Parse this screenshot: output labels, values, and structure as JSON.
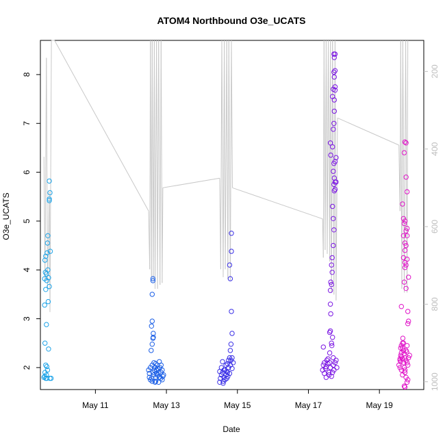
{
  "chart_data": {
    "type": "scatter",
    "title": "ATOM4 Northbound O3e_UCATS",
    "xlabel": "Date",
    "ylabel": "O3e_UCATS",
    "x_ticks": [
      "May 11",
      "May 13",
      "May 15",
      "May 17",
      "May 19"
    ],
    "x_tick_days": [
      11,
      13,
      15,
      17,
      19
    ],
    "xlim": [
      9.45,
      20.25
    ],
    "y_ticks": [
      2,
      3,
      4,
      5,
      6,
      7,
      8
    ],
    "ylim": [
      1.55,
      8.7
    ],
    "y2_ticks": [
      200,
      400,
      600,
      800,
      1000
    ],
    "y2lim": [
      1020,
      120
    ],
    "y2_reversed": true,
    "grid": false,
    "point_style": "open-circle",
    "series": [
      {
        "color": "#1ca3e8",
        "points": [
          [
            9.55,
            1.8
          ],
          [
            9.57,
            1.82
          ],
          [
            9.6,
            1.78
          ],
          [
            9.62,
            1.85
          ],
          [
            9.58,
            1.9
          ],
          [
            9.65,
            1.95
          ],
          [
            9.6,
            2.05
          ],
          [
            9.63,
            2.02
          ],
          [
            9.58,
            2.5
          ],
          [
            9.68,
            2.38
          ],
          [
            9.62,
            2.88
          ],
          [
            9.57,
            3.28
          ],
          [
            9.6,
            3.6
          ],
          [
            9.63,
            3.78
          ],
          [
            9.57,
            3.82
          ],
          [
            9.62,
            3.92
          ],
          [
            9.59,
            3.95
          ],
          [
            9.66,
            4.0
          ],
          [
            9.58,
            4.2
          ],
          [
            9.64,
            4.35
          ],
          [
            9.6,
            4.28
          ],
          [
            9.66,
            4.7
          ],
          [
            9.65,
            4.55
          ],
          [
            9.7,
            5.45
          ],
          [
            9.7,
            5.42
          ],
          [
            9.72,
            5.58
          ],
          [
            9.7,
            5.82
          ],
          [
            9.73,
            4.38
          ],
          [
            9.7,
            3.66
          ],
          [
            9.67,
            3.35
          ],
          [
            9.75,
            1.78
          ],
          [
            9.72,
            1.78
          ],
          [
            9.63,
            1.78
          ],
          [
            9.68,
            3.84
          ]
        ]
      },
      {
        "color": "#1a5ee6",
        "points": [
          [
            12.5,
            1.95
          ],
          [
            12.52,
            1.8
          ],
          [
            12.55,
            1.75
          ],
          [
            12.6,
            1.72
          ],
          [
            12.62,
            1.9
          ],
          [
            12.65,
            1.85
          ],
          [
            12.68,
            1.7
          ],
          [
            12.7,
            1.8
          ],
          [
            12.72,
            1.95
          ],
          [
            12.75,
            1.85
          ],
          [
            12.78,
            1.7
          ],
          [
            12.8,
            1.8
          ],
          [
            12.82,
            2.0
          ],
          [
            12.85,
            1.9
          ],
          [
            12.88,
            1.75
          ],
          [
            12.9,
            1.82
          ],
          [
            12.55,
            2.0
          ],
          [
            12.6,
            2.05
          ],
          [
            12.65,
            2.1
          ],
          [
            12.7,
            2.08
          ],
          [
            12.75,
            1.98
          ],
          [
            12.8,
            2.12
          ],
          [
            12.85,
            2.05
          ],
          [
            12.88,
            1.95
          ],
          [
            12.57,
            2.35
          ],
          [
            12.6,
            2.48
          ],
          [
            12.62,
            2.6
          ],
          [
            12.63,
            2.62
          ],
          [
            12.58,
            2.85
          ],
          [
            12.6,
            2.95
          ],
          [
            12.63,
            2.7
          ],
          [
            12.6,
            3.5
          ],
          [
            12.62,
            3.78
          ],
          [
            12.62,
            3.82
          ],
          [
            12.68,
            2.0
          ],
          [
            12.72,
            1.88
          ],
          [
            12.92,
            1.85
          ],
          [
            12.52,
            1.88
          ],
          [
            12.66,
            1.95
          ],
          [
            12.78,
            1.9
          ],
          [
            12.84,
            1.78
          ],
          [
            12.74,
            2.05
          ],
          [
            12.7,
            1.72
          ],
          [
            12.58,
            1.78
          ]
        ]
      },
      {
        "color": "#3a2fe6",
        "points": [
          [
            14.5,
            1.7
          ],
          [
            14.52,
            1.78
          ],
          [
            14.55,
            1.85
          ],
          [
            14.58,
            1.9
          ],
          [
            14.6,
            1.72
          ],
          [
            14.62,
            1.8
          ],
          [
            14.65,
            1.95
          ],
          [
            14.68,
            1.85
          ],
          [
            14.7,
            1.78
          ],
          [
            14.72,
            1.9
          ],
          [
            14.75,
            2.0
          ],
          [
            14.78,
            1.88
          ],
          [
            14.8,
            2.05
          ],
          [
            14.82,
            2.15
          ],
          [
            14.85,
            2.2
          ],
          [
            14.55,
            2.0
          ],
          [
            14.58,
            2.12
          ],
          [
            14.62,
            1.95
          ],
          [
            14.68,
            2.05
          ],
          [
            14.7,
            1.92
          ],
          [
            14.72,
            2.08
          ],
          [
            14.75,
            2.15
          ],
          [
            14.78,
            2.2
          ],
          [
            14.8,
            2.35
          ],
          [
            14.82,
            2.48
          ],
          [
            14.85,
            2.7
          ],
          [
            14.83,
            3.15
          ],
          [
            14.8,
            3.82
          ],
          [
            14.78,
            4.1
          ],
          [
            14.83,
            4.38
          ],
          [
            14.83,
            4.75
          ],
          [
            14.6,
            1.68
          ],
          [
            14.65,
            1.75
          ],
          [
            14.73,
            1.82
          ],
          [
            14.85,
            1.98
          ],
          [
            14.5,
            1.92
          ],
          [
            14.88,
            2.1
          ]
        ]
      },
      {
        "color": "#7a14e3",
        "points": [
          [
            17.4,
            1.95
          ],
          [
            17.42,
            2.05
          ],
          [
            17.45,
            2.1
          ],
          [
            17.48,
            1.98
          ],
          [
            17.5,
            2.02
          ],
          [
            17.52,
            2.15
          ],
          [
            17.55,
            2.08
          ],
          [
            17.58,
            1.9
          ],
          [
            17.6,
            2.1
          ],
          [
            17.62,
            2.0
          ],
          [
            17.65,
            1.82
          ],
          [
            17.68,
            1.9
          ],
          [
            17.7,
            2.05
          ],
          [
            17.72,
            1.95
          ],
          [
            17.75,
            2.1
          ],
          [
            17.78,
            2.15
          ],
          [
            17.42,
            2.42
          ],
          [
            17.55,
            2.18
          ],
          [
            17.6,
            2.3
          ],
          [
            17.65,
            2.5
          ],
          [
            17.68,
            2.62
          ],
          [
            17.6,
            2.72
          ],
          [
            17.62,
            2.75
          ],
          [
            17.63,
            3.1
          ],
          [
            17.62,
            3.3
          ],
          [
            17.62,
            3.58
          ],
          [
            17.65,
            3.7
          ],
          [
            17.67,
            3.95
          ],
          [
            17.65,
            4.1
          ],
          [
            17.67,
            4.25
          ],
          [
            17.63,
            3.75
          ],
          [
            17.7,
            4.5
          ],
          [
            17.72,
            4.82
          ],
          [
            17.7,
            5.05
          ],
          [
            17.68,
            5.3
          ],
          [
            17.73,
            5.62
          ],
          [
            17.75,
            5.65
          ],
          [
            17.72,
            5.75
          ],
          [
            17.75,
            5.8
          ],
          [
            17.73,
            5.88
          ],
          [
            17.78,
            5.8
          ],
          [
            17.7,
            6.02
          ],
          [
            17.72,
            6.18
          ],
          [
            17.75,
            6.22
          ],
          [
            17.78,
            6.3
          ],
          [
            17.63,
            6.35
          ],
          [
            17.62,
            6.6
          ],
          [
            17.68,
            6.52
          ],
          [
            17.7,
            6.88
          ],
          [
            17.72,
            7.0
          ],
          [
            17.73,
            7.25
          ],
          [
            17.68,
            7.55
          ],
          [
            17.73,
            7.48
          ],
          [
            17.75,
            7.68
          ],
          [
            17.75,
            7.75
          ],
          [
            17.7,
            7.7
          ],
          [
            17.73,
            7.95
          ],
          [
            17.72,
            8.05
          ],
          [
            17.75,
            8.08
          ],
          [
            17.72,
            8.42
          ],
          [
            17.75,
            8.42
          ],
          [
            17.73,
            8.35
          ],
          [
            17.5,
            1.8
          ],
          [
            17.58,
            1.85
          ],
          [
            17.45,
            1.88
          ],
          [
            17.8,
            2.0
          ],
          [
            17.7,
            2.2
          ],
          [
            17.66,
            2.45
          ]
        ]
      },
      {
        "color": "#e012c8",
        "points": [
          [
            19.55,
            2.05
          ],
          [
            19.58,
            2.15
          ],
          [
            19.6,
            2.25
          ],
          [
            19.62,
            2.3
          ],
          [
            19.65,
            2.18
          ],
          [
            19.68,
            2.1
          ],
          [
            19.7,
            2.0
          ],
          [
            19.72,
            1.9
          ],
          [
            19.75,
            1.8
          ],
          [
            19.78,
            1.7
          ],
          [
            19.8,
            1.75
          ],
          [
            19.82,
            2.2
          ],
          [
            19.85,
            2.25
          ],
          [
            19.6,
            2.4
          ],
          [
            19.62,
            2.45
          ],
          [
            19.65,
            2.5
          ],
          [
            19.68,
            2.35
          ],
          [
            19.7,
            2.28
          ],
          [
            19.72,
            2.2
          ],
          [
            19.75,
            2.15
          ],
          [
            19.78,
            2.1
          ],
          [
            19.8,
            2.05
          ],
          [
            19.7,
            1.62
          ],
          [
            19.72,
            1.6
          ],
          [
            19.65,
            1.85
          ],
          [
            19.62,
            1.95
          ],
          [
            19.58,
            2.0
          ],
          [
            19.6,
            2.12
          ],
          [
            19.62,
            2.22
          ],
          [
            19.65,
            2.4
          ],
          [
            19.68,
            2.5
          ],
          [
            19.72,
            1.95
          ],
          [
            19.75,
            2.35
          ],
          [
            19.78,
            2.45
          ],
          [
            19.8,
            2.9
          ],
          [
            19.82,
            2.95
          ],
          [
            19.8,
            3.15
          ],
          [
            19.62,
            3.25
          ],
          [
            19.75,
            3.62
          ],
          [
            19.7,
            3.75
          ],
          [
            19.82,
            3.85
          ],
          [
            19.72,
            4.05
          ],
          [
            19.75,
            4.1
          ],
          [
            19.78,
            4.22
          ],
          [
            19.72,
            4.4
          ],
          [
            19.75,
            4.5
          ],
          [
            19.72,
            4.55
          ],
          [
            19.78,
            4.7
          ],
          [
            19.68,
            4.7
          ],
          [
            19.75,
            4.8
          ],
          [
            19.78,
            4.85
          ],
          [
            19.7,
            4.95
          ],
          [
            19.68,
            5.05
          ],
          [
            19.72,
            5.0
          ],
          [
            19.65,
            5.35
          ],
          [
            19.78,
            5.6
          ],
          [
            19.75,
            5.9
          ],
          [
            19.7,
            6.4
          ],
          [
            19.75,
            6.6
          ],
          [
            19.72,
            6.62
          ],
          [
            19.68,
            4.25
          ],
          [
            19.72,
            4.15
          ],
          [
            19.58,
            2.18
          ],
          [
            19.66,
            2.6
          ],
          [
            19.77,
            2.32
          ]
        ]
      }
    ],
    "y2_series": {
      "color": "#c8c8c8",
      "points": [
        [
          9.55,
          420
        ],
        [
          9.58,
          740
        ],
        [
          9.62,
          165
        ],
        [
          9.65,
          760
        ],
        [
          9.7,
          510
        ],
        [
          9.72,
          820
        ],
        [
          9.76,
          120
        ],
        [
          9.85,
          120
        ],
        [
          12.5,
          560
        ],
        [
          12.53,
          710
        ],
        [
          12.55,
          120
        ],
        [
          12.58,
          730
        ],
        [
          12.6,
          120
        ],
        [
          12.63,
          740
        ],
        [
          12.66,
          120
        ],
        [
          12.68,
          760
        ],
        [
          12.72,
          120
        ],
        [
          12.75,
          760
        ],
        [
          12.78,
          120
        ],
        [
          12.82,
          750
        ],
        [
          12.85,
          120
        ],
        [
          12.88,
          745
        ],
        [
          12.9,
          500
        ],
        [
          14.5,
          475
        ],
        [
          14.53,
          710
        ],
        [
          14.56,
          120
        ],
        [
          14.6,
          730
        ],
        [
          14.63,
          120
        ],
        [
          14.66,
          710
        ],
        [
          14.7,
          120
        ],
        [
          14.73,
          735
        ],
        [
          14.76,
          120
        ],
        [
          14.8,
          740
        ],
        [
          14.83,
          120
        ],
        [
          14.86,
          500
        ],
        [
          17.4,
          580
        ],
        [
          17.42,
          680
        ],
        [
          17.44,
          120
        ],
        [
          17.47,
          660
        ],
        [
          17.5,
          120
        ],
        [
          17.53,
          670
        ],
        [
          17.56,
          120
        ],
        [
          17.6,
          690
        ],
        [
          17.62,
          120
        ],
        [
          17.65,
          770
        ],
        [
          17.68,
          120
        ],
        [
          17.72,
          775
        ],
        [
          17.75,
          120
        ],
        [
          17.78,
          790
        ],
        [
          17.82,
          320
        ],
        [
          19.55,
          390
        ],
        [
          19.58,
          560
        ],
        [
          19.6,
          120
        ],
        [
          19.63,
          760
        ],
        [
          19.66,
          120
        ],
        [
          19.7,
          770
        ],
        [
          19.74,
          120
        ],
        [
          19.78,
          770
        ],
        [
          19.8,
          120
        ]
      ]
    }
  }
}
